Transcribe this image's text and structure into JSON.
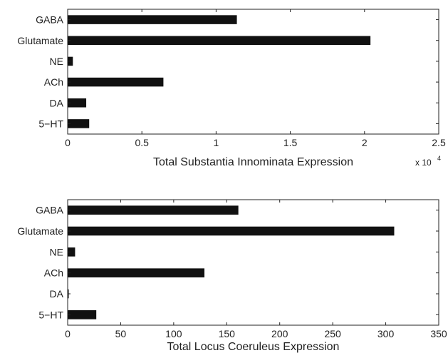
{
  "colors": {
    "bar": "#111111",
    "axis": "#222222",
    "background": "#ffffff"
  },
  "chart_data": [
    {
      "type": "bar",
      "orientation": "horizontal",
      "categories": [
        "GABA",
        "Glutamate",
        "NE",
        "ACh",
        "DA",
        "5−HT"
      ],
      "values": [
        11400,
        20400,
        350,
        6450,
        1250,
        1450
      ],
      "xlabel": "Total Substantia Innominata Expression",
      "xlim": [
        0,
        25000
      ],
      "xticks": [
        0,
        5000,
        10000,
        15000,
        20000,
        25000
      ],
      "xtick_labels": [
        "0",
        "0.5",
        "1",
        "1.5",
        "2",
        "2.5"
      ],
      "x_multiplier_label": "x 10",
      "x_multiplier_exponent": "4",
      "grid": false
    },
    {
      "type": "bar",
      "orientation": "horizontal",
      "categories": [
        "GABA",
        "Glutamate",
        "NE",
        "ACh",
        "DA",
        "5−HT"
      ],
      "values": [
        161,
        308,
        7,
        129,
        1,
        27
      ],
      "xlabel": "Total Locus Coeruleus Expression",
      "xlim": [
        0,
        350
      ],
      "xticks": [
        0,
        50,
        100,
        150,
        200,
        250,
        300,
        350
      ],
      "xtick_labels": [
        "0",
        "50",
        "100",
        "150",
        "200",
        "250",
        "300",
        "350"
      ],
      "grid": false
    }
  ]
}
